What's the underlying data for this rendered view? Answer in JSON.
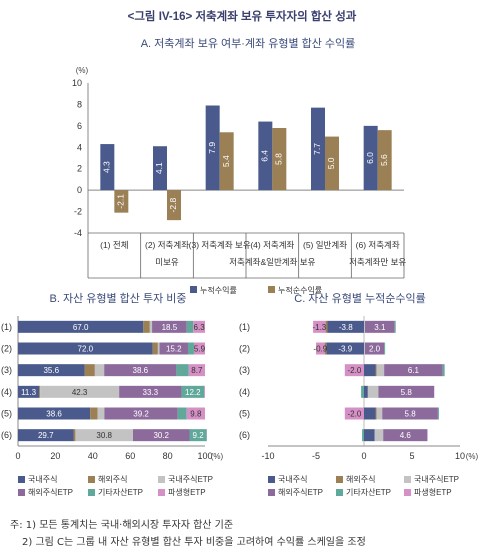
{
  "figure": {
    "title": "<그림 IV-16> 저축계좌 보유 투자자의 합산 성과",
    "notes": [
      "주: 1) 모든 통계치는 국내·해외시장 투자자 합산 기준",
      "2) 그림 C는 그룹 내 자산 유형별 합산 투자 비중을 고려하여 수익률 스케일을 조정"
    ]
  },
  "chart_data": [
    {
      "id": "A",
      "type": "bar",
      "title": "A. 저축계좌 보유 여부·계좌 유형별 합산 수익률",
      "ylabel": "(%)",
      "ylim": [
        -4,
        10
      ],
      "yticks": [
        -4,
        -2,
        0,
        2,
        4,
        6,
        8,
        10
      ],
      "category_lines": [
        [
          "(1) 전체"
        ],
        [
          "(2) 저축계좌",
          "미보유"
        ],
        [
          "(3) 저축계좌 보유"
        ],
        [
          "(4) 저축계좌",
          "저축계좌&일반계좌 보유"
        ],
        [
          "(5) 일반계좌"
        ],
        [
          "(6) 저축계좌",
          "저축계좌만 보유"
        ]
      ],
      "series": [
        {
          "name": "누적수익률",
          "color": "#4a5a8c",
          "values": [
            4.3,
            4.1,
            7.9,
            6.4,
            7.7,
            6.0
          ],
          "labels": [
            "4.3",
            "4.1",
            "7.9",
            "6.4",
            "7.7",
            "6.0"
          ]
        },
        {
          "name": "누적순수익률",
          "color": "#9b7f55",
          "values": [
            -2.1,
            -2.8,
            5.4,
            5.8,
            5.0,
            5.6
          ],
          "labels": [
            "-2.1",
            "-2.8",
            "5.4",
            "5.8",
            "5.0",
            "5.6"
          ]
        }
      ],
      "legend": "bottom"
    },
    {
      "id": "B",
      "type": "bar",
      "orientation": "horizontal",
      "stacked": true,
      "title": "B. 자산 유형별 합산 투자 비중",
      "xlabel": "(%)",
      "xlim": [
        0,
        100
      ],
      "xticks": [
        0,
        20,
        40,
        60,
        80,
        100
      ],
      "categories": [
        "(1)",
        "(2)",
        "(3)",
        "(4)",
        "(5)",
        "(6)"
      ],
      "series": [
        {
          "name": "국내주식",
          "color": "#4a5a8c",
          "values": [
            67.0,
            72.0,
            35.6,
            11.3,
            38.6,
            29.7
          ],
          "labels": [
            "67.0",
            "72.0",
            "35.6",
            "11.3",
            "38.6",
            "29.7"
          ]
        },
        {
          "name": "해외주식",
          "color": "#9b7f55",
          "values": [
            3.5,
            2.8,
            5.5,
            0.5,
            4.0,
            1.0
          ],
          "labels": [
            "",
            "",
            "",
            "",
            "",
            ""
          ]
        },
        {
          "name": "국내주식ETP",
          "color": "#c3c3c3",
          "values": [
            1.2,
            0.9,
            5.0,
            42.3,
            3.6,
            30.8
          ],
          "labels": [
            "",
            "",
            "",
            "42.3",
            "",
            "30.8"
          ]
        },
        {
          "name": "해외주식ETP",
          "color": "#8c6a9c",
          "values": [
            18.5,
            15.2,
            38.6,
            33.3,
            39.2,
            30.2
          ],
          "labels": [
            "18.5",
            "15.2",
            "38.6",
            "33.3",
            "39.2",
            "30.2"
          ]
        },
        {
          "name": "기타자산ETP",
          "color": "#5fa89a",
          "values": [
            3.5,
            3.2,
            6.6,
            12.2,
            4.8,
            9.2
          ],
          "labels": [
            "",
            "",
            "",
            "12.2",
            "",
            "9.2"
          ]
        },
        {
          "name": "파생형ETP",
          "color": "#d590c6",
          "values": [
            6.3,
            5.9,
            8.7,
            0.4,
            9.8,
            0.1
          ],
          "labels": [
            "6.3",
            "5.9",
            "8.7",
            "",
            "9.8",
            ""
          ]
        }
      ],
      "legend": "bottom"
    },
    {
      "id": "C",
      "type": "bar",
      "orientation": "horizontal",
      "stacked": true,
      "diverging": true,
      "title": "C. 자산 유형별 누적순수익률",
      "xlabel": "(%)",
      "xlim": [
        -10,
        10
      ],
      "xticks": [
        -10,
        -5,
        0,
        5,
        10
      ],
      "categories": [
        "(1)",
        "(2)",
        "(3)",
        "(4)",
        "(5)",
        "(6)"
      ],
      "series": [
        {
          "name": "국내주식",
          "color": "#4a5a8c",
          "values": [
            -3.8,
            -3.9,
            1.2,
            0.4,
            1.2,
            1.1
          ],
          "labels": [
            "-3.8",
            "-3.9",
            "",
            "",
            "",
            ""
          ]
        },
        {
          "name": "해외주식",
          "color": "#9b7f55",
          "values": [
            -0.2,
            -0.2,
            0.1,
            0.0,
            0.1,
            0.0
          ],
          "labels": [
            "",
            "",
            "",
            "",
            "",
            ""
          ]
        },
        {
          "name": "국내주식ETP",
          "color": "#c3c3c3",
          "values": [
            0.1,
            0.1,
            0.8,
            1.1,
            0.6,
            0.9
          ],
          "labels": [
            "",
            "",
            "",
            "",
            "",
            ""
          ]
        },
        {
          "name": "해외주식ETP",
          "color": "#8c6a9c",
          "values": [
            3.1,
            2.0,
            6.1,
            5.8,
            5.8,
            4.6
          ],
          "labels": [
            "3.1",
            "2.0",
            "6.1",
            "5.8",
            "5.8",
            "4.6"
          ]
        },
        {
          "name": "기타자산ETP",
          "color": "#5fa89a",
          "values": [
            0.1,
            0.1,
            0.2,
            -0.3,
            0.1,
            -0.2
          ],
          "labels": [
            "",
            "",
            "",
            "",
            "",
            ""
          ]
        },
        {
          "name": "파생형ETP",
          "color": "#d590c6",
          "values": [
            -1.3,
            -0.9,
            -2.0,
            0.0,
            -2.0,
            0.0
          ],
          "labels": [
            "-1.3",
            "-0.9",
            "-2.0",
            "",
            "-2.0",
            ""
          ]
        }
      ],
      "legend": "bottom"
    }
  ]
}
